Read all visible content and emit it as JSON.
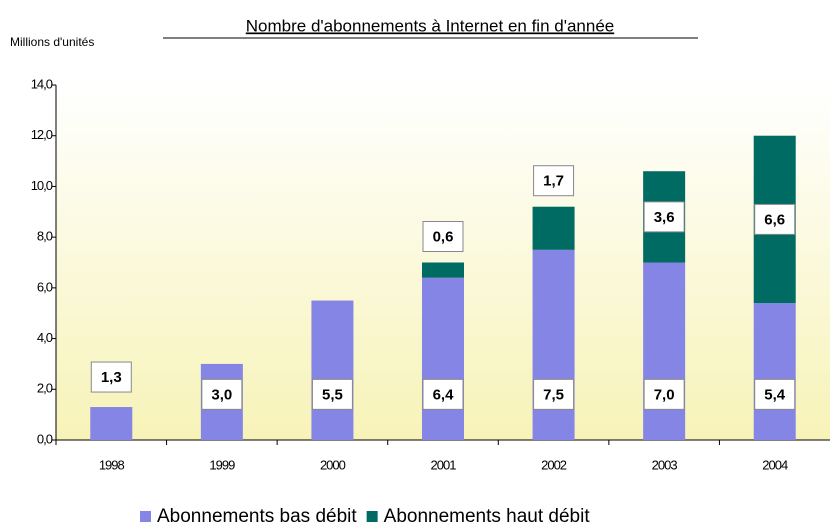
{
  "chart_data": {
    "type": "stacked_bar",
    "title": "Nombre d'abonnements à Internet en fin d'année",
    "y_axis_label": "Millions d'unités",
    "categories": [
      "1998",
      "1999",
      "2000",
      "2001",
      "2002",
      "2003",
      "2004"
    ],
    "series": [
      {
        "name": "Abonnements bas débit",
        "color": "#8585e6",
        "label_color": "#3355dd",
        "values": [
          1.3,
          3.0,
          5.5,
          6.4,
          7.5,
          7.0,
          5.4
        ],
        "value_labels": [
          "1,3",
          "3,0",
          "5,5",
          "6,4",
          "7,5",
          "7,0",
          "5,4"
        ]
      },
      {
        "name": "Abonnements haut débit",
        "color": "#006b63",
        "label_color": "#2e8b57",
        "values": [
          null,
          null,
          null,
          0.6,
          1.7,
          3.6,
          6.6
        ],
        "value_labels": [
          null,
          null,
          null,
          "0,6",
          "1,7",
          "3,6",
          "6,6"
        ]
      }
    ],
    "ylim": [
      0,
      14
    ],
    "yticks": [
      {
        "value": 0,
        "label": "0,0"
      },
      {
        "value": 2,
        "label": "2,0"
      },
      {
        "value": 4,
        "label": "4,0"
      },
      {
        "value": 6,
        "label": "6,0"
      },
      {
        "value": 8,
        "label": "8,0"
      },
      {
        "value": 10,
        "label": "10,0"
      },
      {
        "value": 12,
        "label": "12,0"
      },
      {
        "value": 14,
        "label": "14,0"
      }
    ],
    "legend": "bottom"
  }
}
